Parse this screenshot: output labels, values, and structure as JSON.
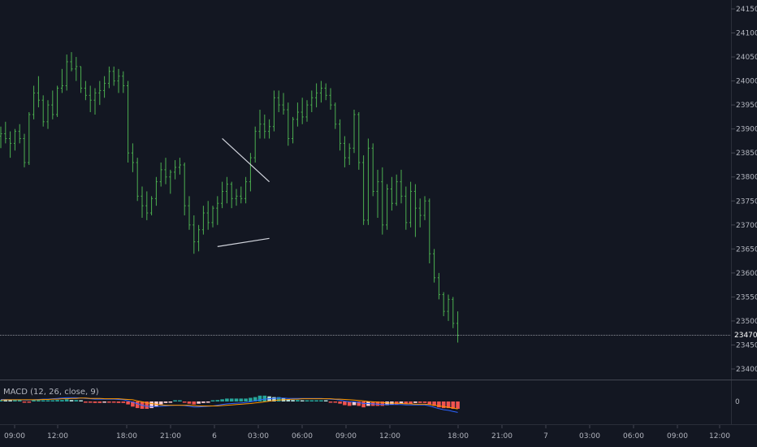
{
  "price_axis": {
    "ticks": [
      "24150",
      "24100",
      "24050",
      "24000",
      "23950",
      "23900",
      "23850",
      "23800",
      "23750",
      "23700",
      "23650",
      "23600",
      "23550",
      "23500",
      "23450",
      "23400"
    ],
    "last_price": "23470"
  },
  "macd": {
    "label": "MACD (12, 26, close, 9)",
    "zero_label": "0"
  },
  "time_axis": {
    "labels": [
      "09:00",
      "12:00",
      "18:00",
      "21:00",
      "6",
      "03:00",
      "06:00",
      "09:00",
      "12:00",
      "18:00",
      "21:00",
      "7",
      "03:00",
      "06:00",
      "09:00",
      "12:00"
    ]
  },
  "colors": {
    "background": "#131722",
    "bar": "#4caf50",
    "trendline": "#d1d4dc",
    "macd_line": "#2962ff",
    "signal_line": "#ff9800",
    "hist_pos": "#26a69a",
    "hist_pos_light": "#b2dfdb",
    "hist_neg": "#ef5350",
    "hist_neg_light": "#ffcdd2"
  },
  "chart_data": {
    "type": "ohlc",
    "ylim": [
      23370,
      24170
    ],
    "bars": [
      [
        23885,
        23905,
        23860,
        23890
      ],
      [
        23890,
        23915,
        23870,
        23880
      ],
      [
        23880,
        23895,
        23840,
        23870
      ],
      [
        23870,
        23900,
        23855,
        23895
      ],
      [
        23895,
        23910,
        23870,
        23880
      ],
      [
        23880,
        23890,
        23820,
        23830
      ],
      [
        23830,
        23935,
        23825,
        23930
      ],
      [
        23930,
        23990,
        23920,
        23975
      ],
      [
        23975,
        24010,
        23945,
        23960
      ],
      [
        23960,
        23970,
        23905,
        23915
      ],
      [
        23915,
        23960,
        23900,
        23950
      ],
      [
        23950,
        23980,
        23920,
        23930
      ],
      [
        23930,
        23990,
        23925,
        23985
      ],
      [
        23985,
        24025,
        23975,
        23990
      ],
      [
        23990,
        24055,
        23980,
        24040
      ],
      [
        24040,
        24060,
        24020,
        24025
      ],
      [
        24025,
        24050,
        24000,
        24030
      ],
      [
        24030,
        24030,
        23975,
        23985
      ],
      [
        23985,
        24000,
        23960,
        23970
      ],
      [
        23970,
        23990,
        23935,
        23960
      ],
      [
        23960,
        23985,
        23930,
        23975
      ],
      [
        23975,
        24000,
        23950,
        23980
      ],
      [
        23980,
        24010,
        23965,
        23995
      ],
      [
        23995,
        24030,
        23985,
        24020
      ],
      [
        24020,
        24030,
        23990,
        24000
      ],
      [
        24000,
        24025,
        23975,
        24010
      ],
      [
        24010,
        24020,
        23975,
        23990
      ],
      [
        23990,
        24000,
        23830,
        23850
      ],
      [
        23850,
        23870,
        23810,
        23830
      ],
      [
        23830,
        23840,
        23750,
        23760
      ],
      [
        23760,
        23780,
        23715,
        23740
      ],
      [
        23740,
        23770,
        23710,
        23725
      ],
      [
        23725,
        23760,
        23720,
        23755
      ],
      [
        23755,
        23800,
        23740,
        23790
      ],
      [
        23790,
        23830,
        23780,
        23815
      ],
      [
        23815,
        23840,
        23785,
        23800
      ],
      [
        23800,
        23815,
        23765,
        23810
      ],
      [
        23810,
        23835,
        23795,
        23820
      ],
      [
        23820,
        23840,
        23805,
        23825
      ],
      [
        23825,
        23830,
        23720,
        23740
      ],
      [
        23740,
        23760,
        23690,
        23700
      ],
      [
        23700,
        23720,
        23640,
        23665
      ],
      [
        23665,
        23700,
        23645,
        23690
      ],
      [
        23690,
        23740,
        23680,
        23725
      ],
      [
        23725,
        23750,
        23690,
        23705
      ],
      [
        23705,
        23740,
        23695,
        23735
      ],
      [
        23735,
        23760,
        23700,
        23745
      ],
      [
        23745,
        23790,
        23735,
        23770
      ],
      [
        23770,
        23800,
        23745,
        23785
      ],
      [
        23785,
        23790,
        23735,
        23755
      ],
      [
        23755,
        23775,
        23740,
        23760
      ],
      [
        23760,
        23780,
        23745,
        23755
      ],
      [
        23755,
        23800,
        23745,
        23790
      ],
      [
        23790,
        23850,
        23770,
        23840
      ],
      [
        23840,
        23905,
        23830,
        23895
      ],
      [
        23895,
        23940,
        23880,
        23910
      ],
      [
        23910,
        23930,
        23880,
        23895
      ],
      [
        23895,
        23920,
        23880,
        23905
      ],
      [
        23905,
        23980,
        23895,
        23965
      ],
      [
        23965,
        23980,
        23935,
        23950
      ],
      [
        23950,
        23975,
        23930,
        23940
      ],
      [
        23940,
        23955,
        23865,
        23880
      ],
      [
        23880,
        23925,
        23870,
        23920
      ],
      [
        23920,
        23955,
        23905,
        23935
      ],
      [
        23935,
        23965,
        23910,
        23925
      ],
      [
        23925,
        23960,
        23915,
        23950
      ],
      [
        23950,
        23980,
        23935,
        23965
      ],
      [
        23965,
        23995,
        23945,
        23975
      ],
      [
        23975,
        24000,
        23955,
        23985
      ],
      [
        23985,
        23995,
        23960,
        23970
      ],
      [
        23970,
        23985,
        23940,
        23950
      ],
      [
        23950,
        23955,
        23900,
        23910
      ],
      [
        23910,
        23920,
        23855,
        23870
      ],
      [
        23870,
        23885,
        23820,
        23840
      ],
      [
        23840,
        23870,
        23825,
        23860
      ],
      [
        23860,
        23940,
        23850,
        23930
      ],
      [
        23930,
        23935,
        23815,
        23830
      ],
      [
        23830,
        23845,
        23700,
        23710
      ],
      [
        23710,
        23880,
        23700,
        23860
      ],
      [
        23860,
        23870,
        23760,
        23770
      ],
      [
        23770,
        23815,
        23715,
        23790
      ],
      [
        23790,
        23820,
        23680,
        23700
      ],
      [
        23700,
        23785,
        23690,
        23775
      ],
      [
        23775,
        23800,
        23730,
        23745
      ],
      [
        23745,
        23805,
        23740,
        23790
      ],
      [
        23790,
        23815,
        23745,
        23760
      ],
      [
        23760,
        23780,
        23690,
        23705
      ],
      [
        23705,
        23790,
        23695,
        23770
      ],
      [
        23770,
        23785,
        23675,
        23735
      ],
      [
        23735,
        23755,
        23695,
        23720
      ],
      [
        23720,
        23760,
        23710,
        23750
      ],
      [
        23750,
        23755,
        23620,
        23640
      ],
      [
        23640,
        23650,
        23580,
        23590
      ],
      [
        23590,
        23600,
        23545,
        23555
      ],
      [
        23555,
        23560,
        23510,
        23520
      ],
      [
        23520,
        23555,
        23500,
        23545
      ],
      [
        23545,
        23550,
        23485,
        23495
      ],
      [
        23495,
        23520,
        23455,
        23470
      ]
    ],
    "trendlines": [
      {
        "from": [
          47,
          23880
        ],
        "to": [
          57,
          23790
        ]
      },
      {
        "from": [
          46,
          23655
        ],
        "to": [
          57,
          23672
        ]
      }
    ],
    "last_price": 23470,
    "macd_line": [
      6,
      6,
      5,
      5,
      5,
      4,
      4,
      5,
      6,
      7,
      7,
      8,
      9,
      10,
      11,
      11,
      11,
      10,
      9,
      8,
      7,
      7,
      7,
      7,
      7,
      6,
      5,
      2,
      -2,
      -7,
      -11,
      -14,
      -15,
      -15,
      -14,
      -13,
      -12,
      -11,
      -11,
      -12,
      -14,
      -16,
      -16,
      -15,
      -14,
      -13,
      -11,
      -9,
      -7,
      -6,
      -5,
      -4,
      -3,
      -1,
      2,
      5,
      7,
      8,
      9,
      10,
      10,
      9,
      9,
      9,
      9,
      9,
      9,
      9,
      9,
      8,
      7,
      6,
      4,
      1,
      -1,
      -1,
      -3,
      -6,
      -6,
      -7,
      -8,
      -9,
      -9,
      -9,
      -9,
      -9,
      -10,
      -10,
      -10,
      -10,
      -10,
      -13,
      -17,
      -21,
      -24,
      -26,
      -29,
      -32
    ],
    "signal_line": [
      4,
      5,
      5,
      5,
      5,
      5,
      5,
      5,
      5,
      6,
      6,
      7,
      7,
      8,
      8,
      9,
      9,
      10,
      10,
      9,
      9,
      9,
      8,
      8,
      8,
      8,
      7,
      6,
      5,
      2,
      -1,
      -4,
      -6,
      -8,
      -10,
      -11,
      -11,
      -11,
      -11,
      -11,
      -11,
      -12,
      -13,
      -13,
      -13,
      -13,
      -13,
      -12,
      -11,
      -10,
      -9,
      -8,
      -7,
      -6,
      -4,
      -3,
      -1,
      1,
      3,
      4,
      5,
      6,
      7,
      7,
      8,
      8,
      8,
      8,
      8,
      8,
      8,
      7,
      7,
      6,
      5,
      4,
      3,
      2,
      0,
      -1,
      -2,
      -3,
      -4,
      -5,
      -5,
      -6,
      -7,
      -7,
      -8,
      -8,
      -8,
      -9,
      -11,
      -13,
      -15,
      -17,
      -19,
      -22
    ]
  }
}
